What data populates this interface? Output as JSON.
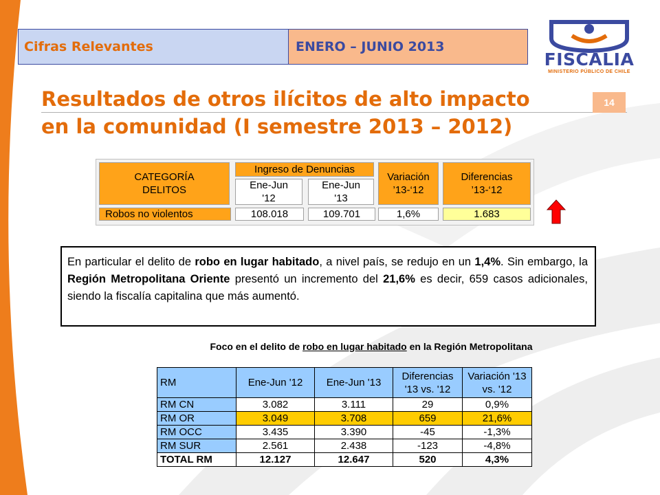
{
  "header": {
    "left_label": "Cifras Relevantes",
    "right_label": "ENERO – JUNIO 2013"
  },
  "logo": {
    "name": "FISCALIA",
    "subtitle": "MINISTERIO PÚBLICO DE CHILE"
  },
  "page_number": "14",
  "title": {
    "line1": "Resultados de otros ilícitos de alto impacto",
    "line2": "en la comunidad (I semestre 2013 – 2012)"
  },
  "summary_table": {
    "category_header": "CATEGORÍA DELITOS",
    "ingreso_header": "Ingreso de Denuncias",
    "col_2012": "Ene-Jun '12",
    "col_2013": "Ene-Jun '13",
    "variation_header": "Variación ’13-‘12",
    "difference_header": "Diferencias ’13-‘12",
    "row": {
      "category": "Robos no violentos",
      "v2012": "108.018",
      "v2013": "109.701",
      "variation": "1,6%",
      "difference": "1.683"
    }
  },
  "indicator": {
    "icon": "up-arrow-icon",
    "color": "#ff0000"
  },
  "paragraph": {
    "p1": "En particular el delito de ",
    "b1": "robo en lugar habitado",
    "p2": ", a nivel país, se redujo en un ",
    "b2": "1,4%",
    "p3": ". Sin embargo, la ",
    "b3": "Región Metropolitana Oriente",
    "p4": " presentó un incremento del ",
    "b4": "21,6%",
    "p5": " es decir, 659 casos adicionales, siendo la fiscalía capitalina que más aumentó."
  },
  "caption": {
    "pre": "Foco en el delito de ",
    "underlined": "robo en lugar habitado",
    "post": " en la Región Metropolitana"
  },
  "rm_table": {
    "headers": [
      "RM",
      "Ene-Jun '12",
      "Ene-Jun '13",
      "Diferencias '13 vs. '12",
      "Variación '13 vs. '12"
    ],
    "rows": [
      [
        "RM CN",
        "3.082",
        "3.111",
        "29",
        "0,9%"
      ],
      [
        "RM OR",
        "3.049",
        "3.708",
        "659",
        "21,6%"
      ],
      [
        "RM OCC",
        "3.435",
        "3.390",
        "-45",
        "-1,3%"
      ],
      [
        "RM SUR",
        "2.561",
        "2.438",
        "-123",
        "-4,8%"
      ],
      [
        "TOTAL RM",
        "12.127",
        "12.647",
        "520",
        "4,3%"
      ]
    ]
  },
  "colors": {
    "accent_orange": "#e36c0a",
    "brand_blue": "#3b4aa0",
    "table_orange": "#ffa319",
    "highlight_yellow": "#ffcc00",
    "header_blue": "#99ccff"
  }
}
